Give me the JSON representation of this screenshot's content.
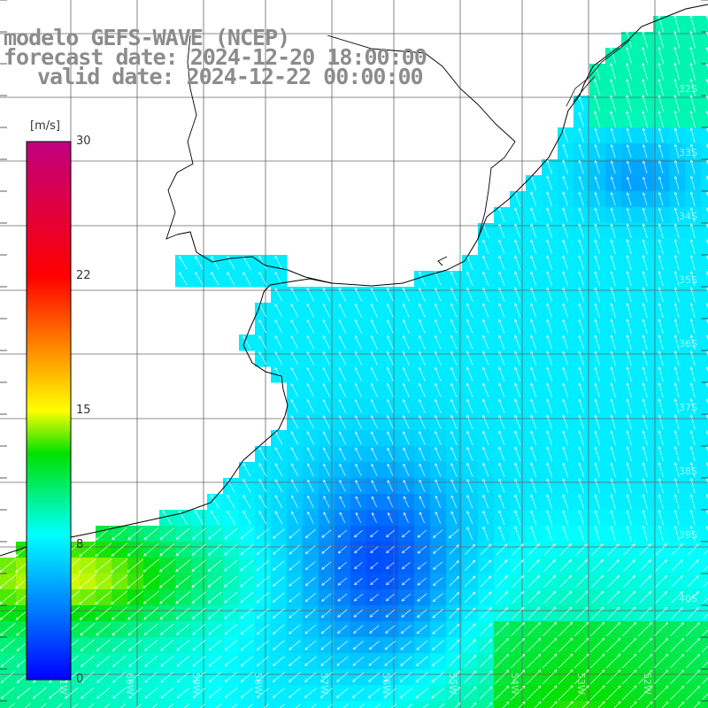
{
  "title": {
    "line1": "modelo GEFS-WAVE (NCEP)",
    "line2": "forecast date: 2024-12-20 18:00:00",
    "line3": "valid date: 2024-12-22 00:00:00"
  },
  "colorbar": {
    "unit": "[m/s]",
    "tick_labels": [
      "30",
      "22",
      "15",
      "8",
      "0"
    ],
    "tick_values": [
      30,
      22,
      15,
      8,
      0
    ],
    "stops": [
      "#0000ff",
      "#00ffff",
      "#00ff00",
      "#ffff00",
      "#ff0000",
      "#c0007f"
    ]
  },
  "grid": {
    "lat_labels": [
      "32S",
      "33S",
      "34S",
      "35S",
      "36S",
      "37S",
      "38S",
      "39S",
      "40S"
    ],
    "lon_labels": [
      "61W",
      "60W",
      "59W",
      "58W",
      "57W",
      "56W",
      "55W",
      "54W",
      "53W",
      "52W"
    ]
  },
  "field": {
    "variable": "wind speed",
    "range": [
      0,
      30
    ]
  }
}
